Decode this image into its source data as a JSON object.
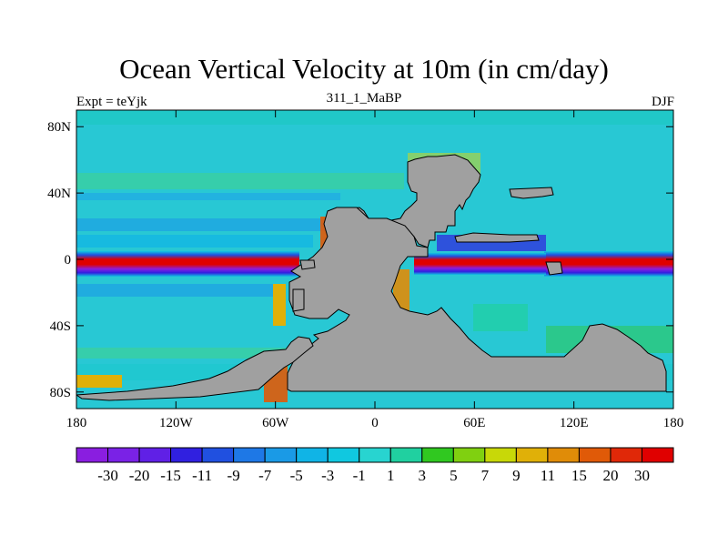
{
  "title": "Ocean Vertical Velocity at 10m (in cm/day)",
  "subtitle_left": "Expt = teYjk",
  "subtitle_center": "311_1_MaBP",
  "subtitle_right": "DJF",
  "map": {
    "lon_range": [
      -180,
      180
    ],
    "lat_range": [
      -90,
      90
    ],
    "x_ticks": [
      {
        "value": -180,
        "label": "180"
      },
      {
        "value": -120,
        "label": "120W"
      },
      {
        "value": -60,
        "label": "60W"
      },
      {
        "value": 0,
        "label": "0"
      },
      {
        "value": 60,
        "label": "60E"
      },
      {
        "value": 120,
        "label": "120E"
      },
      {
        "value": 180,
        "label": "180"
      }
    ],
    "y_ticks": [
      {
        "value": 80,
        "label": "80N"
      },
      {
        "value": 40,
        "label": "40N"
      },
      {
        "value": 0,
        "label": "0"
      },
      {
        "value": -40,
        "label": "40S"
      },
      {
        "value": -80,
        "label": "80S"
      }
    ],
    "land_color": "#a0a0a0"
  },
  "colorbar": {
    "colors": [
      "#8a1ee0",
      "#7a22e6",
      "#6020e6",
      "#3020e0",
      "#2050e0",
      "#1e78e6",
      "#1a9ae6",
      "#10b4e6",
      "#10c8e0",
      "#28d4d0",
      "#20d0a0",
      "#30c820",
      "#80d010",
      "#c8d808",
      "#e0b008",
      "#e08c08",
      "#e05a08",
      "#e02808",
      "#e00000"
    ],
    "labels": [
      "-30",
      "-20",
      "-15",
      "-11",
      "-9",
      "-7",
      "-5",
      "-3",
      "-1",
      "1",
      "3",
      "5",
      "7",
      "9",
      "11",
      "15",
      "20",
      "30"
    ]
  }
}
